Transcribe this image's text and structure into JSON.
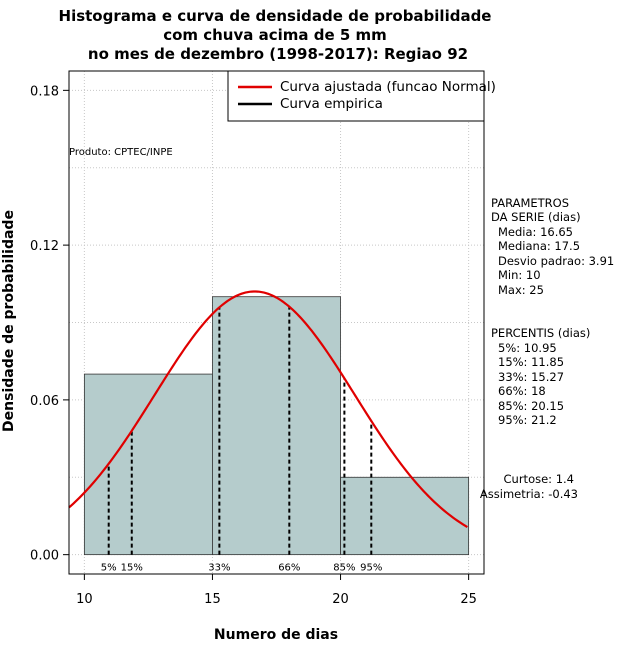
{
  "chart_data": {
    "type": "bar",
    "title_lines": [
      "Histograma e curva de densidade de probabilidade",
      "com chuva acima de 5 mm",
      "no mes de dezembro (1998-2017): Regiao 92"
    ],
    "xlabel": "Numero de dias",
    "ylabel": "Densidade de probabilidade",
    "xlim": [
      9.4,
      25.6
    ],
    "ylim": [
      -0.0075,
      0.1875
    ],
    "x_ticks": [
      10,
      15,
      20,
      25
    ],
    "y_ticks": [
      0.0,
      0.06,
      0.12,
      0.18
    ],
    "y_tick_labels": [
      "0.00",
      "0.06",
      "0.12",
      "0.18"
    ],
    "grid": true,
    "legend_position": "top-right",
    "bins": [
      {
        "x0": 10,
        "x1": 15,
        "density": 0.07
      },
      {
        "x0": 15,
        "x1": 20,
        "density": 0.1
      },
      {
        "x0": 20,
        "x1": 25,
        "density": 0.03
      }
    ],
    "bar_color": "#b5cccc",
    "fitted_curve": {
      "name": "Curva ajustada (funcao Normal)",
      "distribution": "normal",
      "mean": 16.65,
      "sd": 3.91,
      "color": "#e00000"
    },
    "empirical_curve": {
      "name": "Curva empirica",
      "color": "#000000"
    },
    "percentile_markers": [
      {
        "label": "5%",
        "x": 10.95
      },
      {
        "label": "15%",
        "x": 11.85
      },
      {
        "label": "33%",
        "x": 15.27
      },
      {
        "label": "66%",
        "x": 18
      },
      {
        "label": "85%",
        "x": 20.15
      },
      {
        "label": "95%",
        "x": 21.2
      }
    ],
    "annotation": "Produto: CPTEC/INPE",
    "parameters": {
      "heading_lines": [
        "PARAMETROS",
        "DA SERIE (dias)"
      ],
      "lines": [
        "Media: 16.65",
        "Mediana: 17.5",
        "Desvio padrao: 3.91",
        "Min: 10",
        "Max: 25"
      ]
    },
    "percentiles_box": {
      "heading": "PERCENTIS (dias)",
      "lines": [
        "5%: 10.95",
        "15%: 11.85",
        "33%: 15.27",
        "66%: 18",
        "85%: 20.15",
        "95%: 21.2"
      ]
    },
    "shape_stats": [
      "Curtose: 1.4",
      "Assimetria: -0.43"
    ]
  }
}
